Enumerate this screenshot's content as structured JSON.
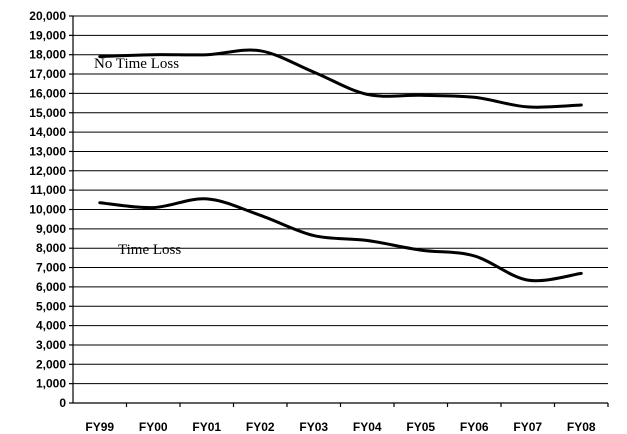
{
  "chart_data": {
    "type": "line",
    "title": "",
    "xlabel": "",
    "ylabel": "",
    "categories": [
      "FY99",
      "FY00",
      "FY01",
      "FY02",
      "FY03",
      "FY04",
      "FY05",
      "FY06",
      "FY07",
      "FY08"
    ],
    "ylim": [
      0,
      20000
    ],
    "ytick_step": 1000,
    "yticks": [
      "0",
      "1,000",
      "2,000",
      "3,000",
      "4,000",
      "5,000",
      "6,000",
      "7,000",
      "8,000",
      "9,000",
      "10,000",
      "11,000",
      "12,000",
      "13,000",
      "14,000",
      "15,000",
      "16,000",
      "17,000",
      "18,000",
      "19,000",
      "20,000"
    ],
    "grid": true,
    "legend": "none",
    "series": [
      {
        "name": "No Time Loss",
        "values": [
          17900,
          18000,
          18000,
          18200,
          17100,
          15950,
          15900,
          15800,
          15300,
          15400
        ]
      },
      {
        "name": "Time Loss",
        "values": [
          10350,
          10100,
          10550,
          9700,
          8650,
          8400,
          7900,
          7600,
          6350,
          6700
        ]
      }
    ]
  }
}
